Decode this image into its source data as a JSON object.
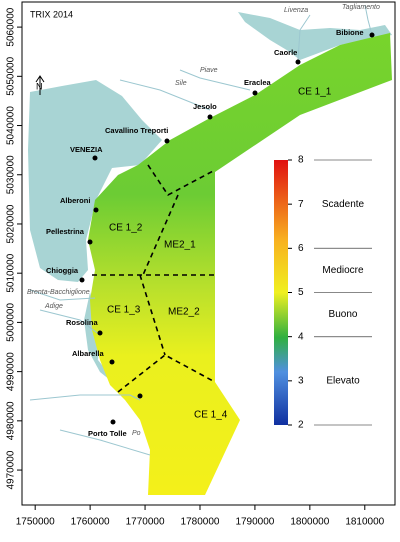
{
  "title": "TRIX 2014",
  "axes": {
    "xlim": [
      1747600,
      1815500
    ],
    "ylim": [
      4962900,
      5065100
    ],
    "xticks": [
      1750000,
      1760000,
      1770000,
      1780000,
      1790000,
      1800000,
      1810000
    ],
    "yticks": [
      4970000,
      4980000,
      4990000,
      5000000,
      5010000,
      5020000,
      5030000,
      5040000,
      5050000,
      5060000
    ]
  },
  "colorbar": {
    "lim": [
      2,
      8
    ],
    "ticks": [
      2,
      3,
      4,
      5,
      6,
      7,
      8
    ],
    "classes": [
      {
        "label": "Scadente",
        "range": [
          6,
          8
        ]
      },
      {
        "label": "Mediocre",
        "range": [
          5,
          6
        ]
      },
      {
        "label": "Buono",
        "range": [
          4,
          5
        ]
      },
      {
        "label": "Elevato",
        "range": [
          2,
          4
        ]
      }
    ]
  },
  "zones": [
    "CE 1_1",
    "CE 1_2",
    "ME2_1",
    "CE 1_3",
    "ME2_2",
    "CE 1_4"
  ],
  "places": [
    "Bibione",
    "Caorle",
    "Eraclea",
    "Jesolo",
    "Cavallino Treporti",
    "VENEZIA",
    "Alberoni",
    "Pellestrina",
    "Chioggia",
    "Rosolina",
    "Albarella",
    "Porto Tolle"
  ],
  "rivers": [
    "Tagliamento",
    "Livenza",
    "Piave",
    "Sile",
    "Brenta-Bacchiglione",
    "Adige",
    "Po"
  ]
}
